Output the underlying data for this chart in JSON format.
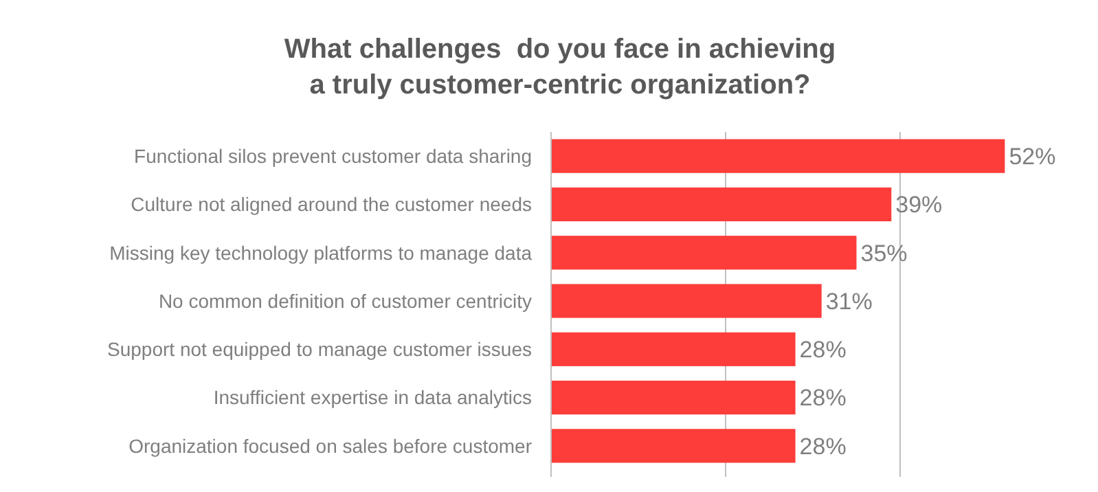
{
  "chart_data": {
    "type": "bar",
    "orientation": "horizontal",
    "title": "What challenges  do you face in achieving\na truly customer-centric organization?",
    "categories": [
      "Functional silos prevent customer data sharing",
      "Culture not aligned around the customer needs",
      "Missing key technology platforms to manage data",
      "No common definition of customer centricity",
      "Support not equipped to manage customer issues",
      "Insufficient expertise in data analytics",
      "Organization focused on sales before customer"
    ],
    "values": [
      52,
      39,
      35,
      31,
      28,
      28,
      28
    ],
    "value_labels": [
      "52%",
      "39%",
      "35%",
      "31%",
      "28%",
      "28%",
      "28%"
    ],
    "color": "#fc3d3a",
    "xticks": [
      {
        "value": 0,
        "label": null
      },
      {
        "value": 20,
        "label": null
      },
      {
        "value": 40,
        "label": null
      }
    ],
    "ref_lines": [
      {
        "axis": "x",
        "value": 20,
        "color": "#bfbfbf"
      },
      {
        "axis": "x",
        "value": 40,
        "color": "#bfbfbf"
      }
    ],
    "tick_labels": "y"
  }
}
